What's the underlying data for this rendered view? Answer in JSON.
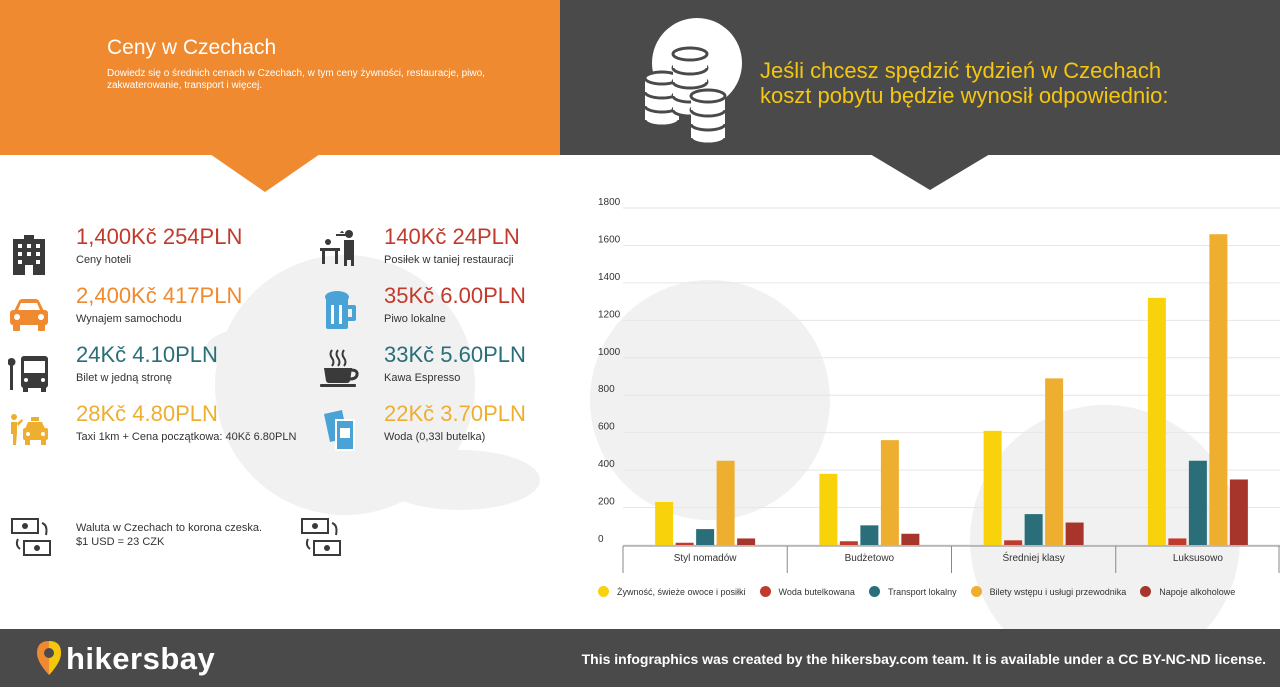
{
  "header": {
    "title": "Ceny w Czechach",
    "subtitle": "Dowiedz się o średnich cenach w Czechach, w tym ceny żywności, restauracje, piwo, zakwaterowanie, transport i więcej.",
    "headline_line1": "Jeśli chcesz spędzić tydzień w Czechach",
    "headline_line2": "koszt pobytu będzie wynosił odpowiednio:"
  },
  "prices": [
    {
      "value": "1,400Kč 254PLN",
      "label": "Ceny hoteli",
      "icon": "hotel-building-icon",
      "color": "#c23a2b"
    },
    {
      "value": "2,400Kč 417PLN",
      "label": "Wynajem samochodu",
      "icon": "car-icon",
      "color": "#c23a2b"
    },
    {
      "value": "24Kč 4.10PLN",
      "label": "Bilet w jedną stronę",
      "icon": "bus-icon",
      "color": "#2a6e7a"
    },
    {
      "value": "28Kč 4.80PLN",
      "label": "Taxi 1km + Cena początkowa: 40Kč 6.80PLN",
      "icon": "taxi-icon",
      "color": "#eeae30"
    },
    {
      "value": "140Kč 24PLN",
      "label": "Posiłek w taniej restauracji",
      "icon": "waiter-icon",
      "color": "#c23a2b"
    },
    {
      "value": "35Kč 6.00PLN",
      "label": "Piwo lokalne",
      "icon": "beer-mug-icon",
      "color": "#c23a2b"
    },
    {
      "value": "33Kč 5.60PLN",
      "label": "Kawa Espresso",
      "icon": "coffee-cup-icon",
      "color": "#2a6e7a"
    },
    {
      "value": "22Kč 3.70PLN",
      "label": "Woda (0,33l butelka)",
      "icon": "water-bottle-icon",
      "color": "#eeae30"
    }
  ],
  "currency": {
    "line1": "Waluta w Czechach to korona czeska.",
    "line2": "$1 USD = 23 CZK",
    "icon": "currency-exchange-icon"
  },
  "chart_data": {
    "type": "bar",
    "categories": [
      "Styl nomadów",
      "Budżetowo",
      "Średniej klasy",
      "Luksusowo"
    ],
    "series": [
      {
        "name": "Żywność, świeże owoce i posiłki",
        "color": "#f8d30c",
        "values": [
          230,
          380,
          610,
          1320
        ]
      },
      {
        "name": "Woda butelkowana",
        "color": "#c23a2b",
        "values": [
          12,
          20,
          25,
          35
        ]
      },
      {
        "name": "Transport lokalny",
        "color": "#2a6e7a",
        "values": [
          85,
          105,
          165,
          450
        ]
      },
      {
        "name": "Bilety wstępu i usługi przewodnika",
        "color": "#eeae30",
        "values": [
          450,
          560,
          890,
          1660
        ]
      },
      {
        "name": "Napoje alkoholowe",
        "color": "#a8352c",
        "values": [
          35,
          60,
          120,
          350
        ]
      }
    ],
    "ylim": [
      0,
      1800
    ],
    "yticks": [
      0,
      200,
      400,
      600,
      800,
      1000,
      1200,
      1400,
      1600,
      1800
    ],
    "grid": true,
    "legend": "bottom"
  },
  "footer": {
    "brand": "hikersbay",
    "note": "This infographics was created by the hikersbay.com team. It is available under a CC BY-NC-ND license."
  }
}
